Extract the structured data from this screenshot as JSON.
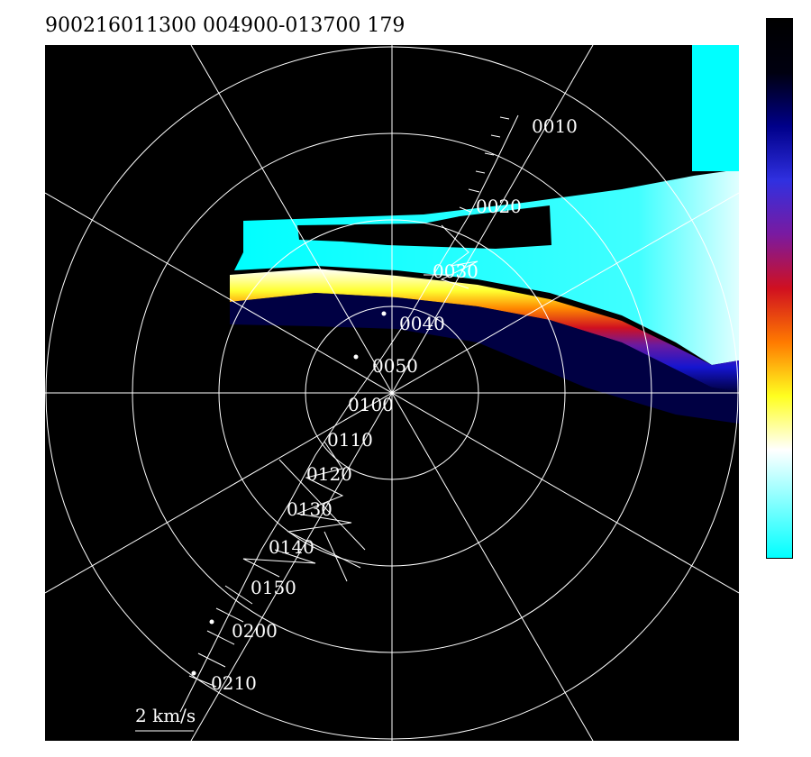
{
  "header": {
    "text": "900216011300 004900-013700 179"
  },
  "plot": {
    "background": "#000000",
    "grid_color": "#ffffff",
    "rings": 4,
    "spokes_deg": [
      0,
      30,
      60,
      90,
      120,
      150
    ],
    "scale_label": "2 km/s",
    "time_labels": [
      "0010",
      "0020",
      "0030",
      "0040",
      "0050",
      "0100",
      "0110",
      "0120",
      "0130",
      "0140",
      "0150",
      "0200",
      "0210"
    ]
  },
  "colorbar": {
    "stops": [
      "#000000",
      "#000010",
      "#00008a",
      "#3030e0",
      "#7a1aa0",
      "#d01020",
      "#ff7a00",
      "#ffff20",
      "#ffffff",
      "#80ffff",
      "#00ffff"
    ]
  }
}
